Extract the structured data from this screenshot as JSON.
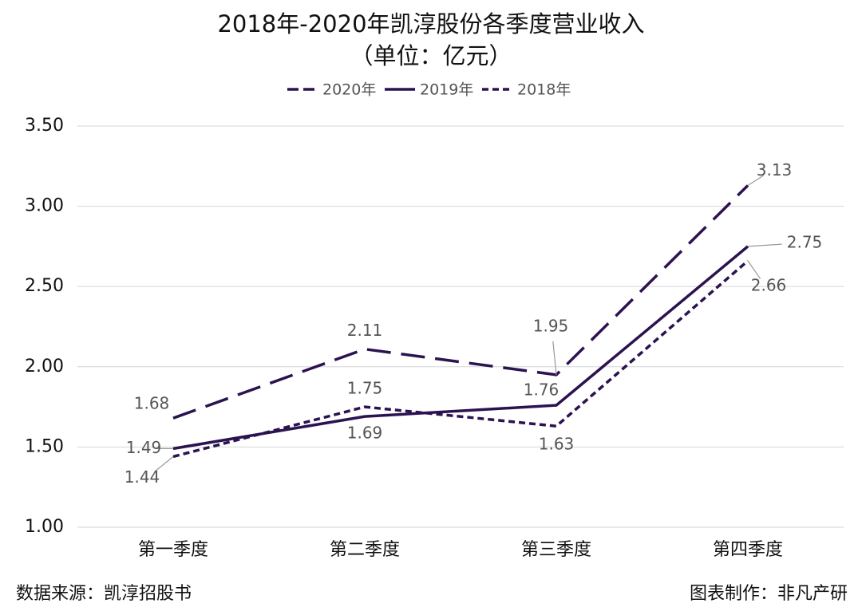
{
  "chart_data": {
    "type": "line",
    "title": "2018年-2020年凯淳股份各季度营业收入",
    "subtitle": "（单位：亿元）",
    "categories": [
      "第一季度",
      "第二季度",
      "第三季度",
      "第四季度"
    ],
    "series": [
      {
        "name": "2020年",
        "color": "#2b1250",
        "dash": "long",
        "values": [
          1.68,
          2.11,
          1.95,
          3.13
        ]
      },
      {
        "name": "2019年",
        "color": "#2b1250",
        "dash": "solid",
        "values": [
          1.49,
          1.69,
          1.76,
          2.75
        ]
      },
      {
        "name": "2018年",
        "color": "#2b1250",
        "dash": "short",
        "values": [
          1.44,
          1.75,
          1.63,
          2.66
        ]
      }
    ],
    "ylim": [
      1,
      3.5
    ],
    "yticks": [
      {
        "value": 1,
        "label": "1.00"
      },
      {
        "value": 1.5,
        "label": "1.50"
      },
      {
        "value": 2,
        "label": "2.00"
      },
      {
        "value": 2.5,
        "label": "2.50"
      },
      {
        "value": 3,
        "label": "3.00"
      },
      {
        "value": 3.5,
        "label": "3.50"
      }
    ],
    "grid": true,
    "legend": "top",
    "source": "数据来源：凯淳招股书",
    "credit": "图表制作：非凡产研"
  }
}
